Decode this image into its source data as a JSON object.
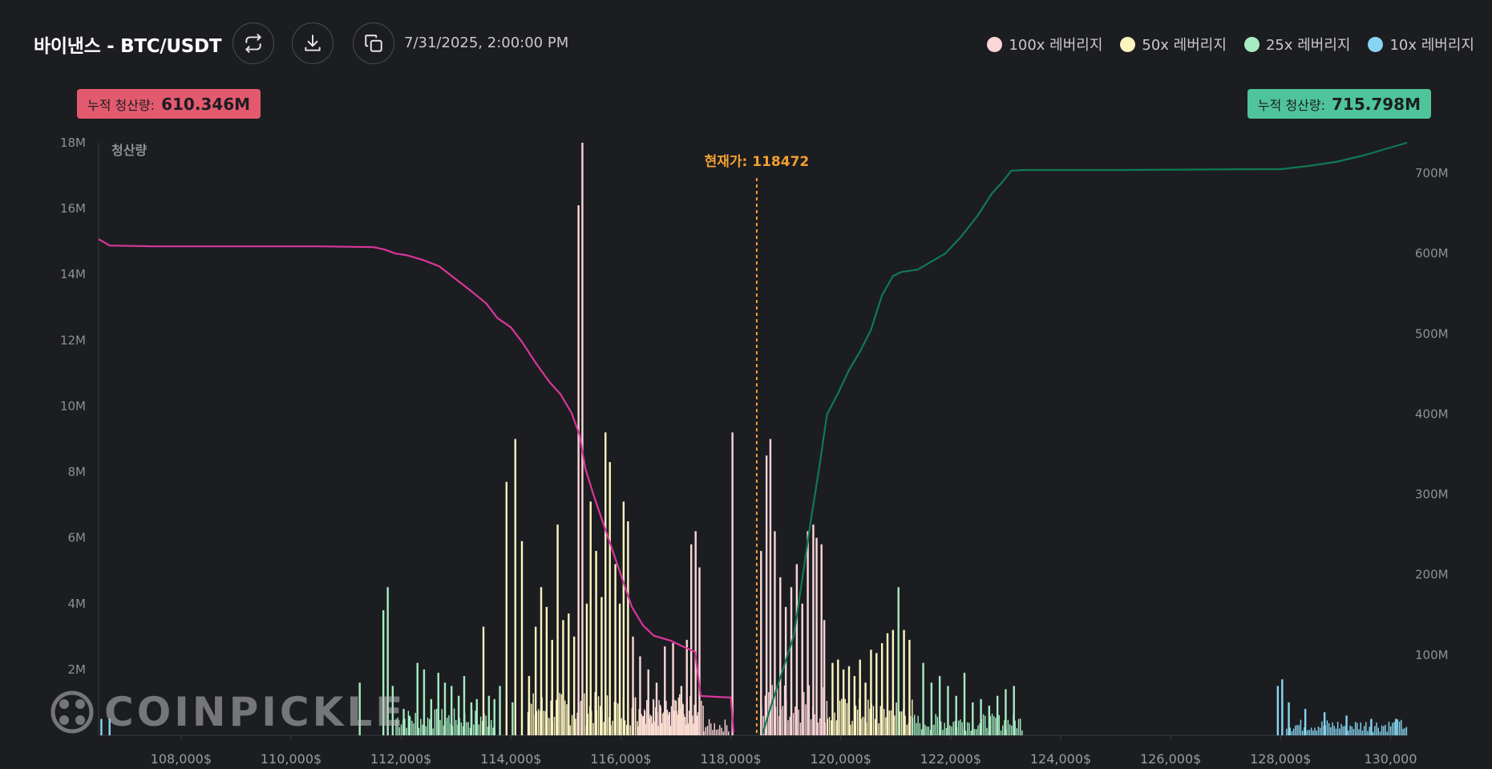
{
  "header": {
    "title": "바이낸스 - BTC/USDT",
    "timestamp": "7/31/2025, 2:00:00 PM",
    "buttons": [
      {
        "icon": "swap-icon"
      },
      {
        "icon": "download-icon"
      },
      {
        "icon": "copy-icon"
      }
    ]
  },
  "legend": [
    {
      "label": "100x 레버리지",
      "color": "#fbd6d8"
    },
    {
      "label": "50x 레버리지",
      "color": "#fdf5c0"
    },
    {
      "label": "25x 레버리지",
      "color": "#a6ecc1"
    },
    {
      "label": "10x 레버리지",
      "color": "#86d6f2"
    }
  ],
  "badges": {
    "left": {
      "label": "누적 청산량:",
      "value": "610.346M"
    },
    "right": {
      "label": "누적 청산량:",
      "value": "715.798M"
    }
  },
  "watermark": "COINPICKLE",
  "chart_data": {
    "type": "bar",
    "ylabel": "청산량",
    "current_price_label": "현재가: 118472",
    "current_price": 118472,
    "xlim": [
      106500,
      130300
    ],
    "ylim": [
      0,
      18000000
    ],
    "y2lim": [
      0,
      738000000
    ],
    "x_ticks": [
      108000,
      110000,
      112000,
      114000,
      116000,
      118000,
      120000,
      122000,
      124000,
      126000,
      128000,
      130000
    ],
    "x_tick_labels": [
      "108,000$",
      "110,000$",
      "112,000$",
      "114,000$",
      "116,000$",
      "118,000$",
      "120,000$",
      "122,000$",
      "124,000$",
      "126,000$",
      "128,000$",
      "130,000"
    ],
    "y_ticks": [
      2000000,
      4000000,
      6000000,
      8000000,
      10000000,
      12000000,
      14000000,
      16000000,
      18000000
    ],
    "y_tick_labels": [
      "2M",
      "4M",
      "6M",
      "8M",
      "10M",
      "12M",
      "14M",
      "16M",
      "18M"
    ],
    "y2_ticks": [
      100000000,
      200000000,
      300000000,
      400000000,
      500000000,
      600000000,
      700000000
    ],
    "y2_tick_labels": [
      "100M",
      "200M",
      "300M",
      "400M",
      "500M",
      "600M",
      "700M"
    ],
    "bars": [
      {
        "x": 106550,
        "v": 0.5,
        "lev": "10x"
      },
      {
        "x": 106700,
        "v": 0.5,
        "lev": "10x"
      },
      {
        "x": 111250,
        "v": 1.6,
        "lev": "25x"
      },
      {
        "x": 111680,
        "v": 3.8,
        "lev": "25x"
      },
      {
        "x": 111760,
        "v": 4.5,
        "lev": "25x"
      },
      {
        "x": 111850,
        "v": 1.5,
        "lev": "25x"
      },
      {
        "x": 112050,
        "v": 0.8,
        "lev": "25x"
      },
      {
        "x": 112150,
        "v": 0.6,
        "lev": "25x"
      },
      {
        "x": 112300,
        "v": 2.2,
        "lev": "25x"
      },
      {
        "x": 112420,
        "v": 2.0,
        "lev": "25x"
      },
      {
        "x": 112550,
        "v": 1.1,
        "lev": "25x"
      },
      {
        "x": 112680,
        "v": 1.9,
        "lev": "25x"
      },
      {
        "x": 112800,
        "v": 1.6,
        "lev": "25x"
      },
      {
        "x": 112920,
        "v": 1.5,
        "lev": "25x"
      },
      {
        "x": 113050,
        "v": 1.2,
        "lev": "25x"
      },
      {
        "x": 113150,
        "v": 1.8,
        "lev": "25x"
      },
      {
        "x": 113280,
        "v": 1.0,
        "lev": "25x"
      },
      {
        "x": 113380,
        "v": 1.1,
        "lev": "25x"
      },
      {
        "x": 113500,
        "v": 3.3,
        "lev": "50x"
      },
      {
        "x": 113600,
        "v": 1.2,
        "lev": "25x"
      },
      {
        "x": 113700,
        "v": 1.1,
        "lev": "25x"
      },
      {
        "x": 113800,
        "v": 1.5,
        "lev": "25x"
      },
      {
        "x": 113920,
        "v": 7.7,
        "lev": "50x"
      },
      {
        "x": 114030,
        "v": 1.0,
        "lev": "25x"
      },
      {
        "x": 114080,
        "v": 9.0,
        "lev": "50x"
      },
      {
        "x": 114200,
        "v": 5.9,
        "lev": "50x"
      },
      {
        "x": 114330,
        "v": 1.8,
        "lev": "50x"
      },
      {
        "x": 114450,
        "v": 3.3,
        "lev": "50x"
      },
      {
        "x": 114550,
        "v": 4.5,
        "lev": "50x"
      },
      {
        "x": 114650,
        "v": 3.9,
        "lev": "50x"
      },
      {
        "x": 114750,
        "v": 2.9,
        "lev": "50x"
      },
      {
        "x": 114850,
        "v": 6.4,
        "lev": "50x"
      },
      {
        "x": 114950,
        "v": 3.5,
        "lev": "50x"
      },
      {
        "x": 115050,
        "v": 3.7,
        "lev": "50x"
      },
      {
        "x": 115150,
        "v": 3.0,
        "lev": "50x"
      },
      {
        "x": 115230,
        "v": 16.1,
        "lev": "100x"
      },
      {
        "x": 115300,
        "v": 18.0,
        "lev": "100x"
      },
      {
        "x": 115380,
        "v": 4.0,
        "lev": "50x"
      },
      {
        "x": 115450,
        "v": 7.1,
        "lev": "50x"
      },
      {
        "x": 115550,
        "v": 5.6,
        "lev": "50x"
      },
      {
        "x": 115650,
        "v": 4.2,
        "lev": "50x"
      },
      {
        "x": 115720,
        "v": 9.2,
        "lev": "50x"
      },
      {
        "x": 115800,
        "v": 8.3,
        "lev": "50x"
      },
      {
        "x": 115900,
        "v": 5.2,
        "lev": "50x"
      },
      {
        "x": 115980,
        "v": 4.0,
        "lev": "50x"
      },
      {
        "x": 116050,
        "v": 7.1,
        "lev": "50x"
      },
      {
        "x": 116130,
        "v": 6.5,
        "lev": "50x"
      },
      {
        "x": 116220,
        "v": 3.0,
        "lev": "100x"
      },
      {
        "x": 116350,
        "v": 2.4,
        "lev": "100x"
      },
      {
        "x": 116500,
        "v": 2.0,
        "lev": "100x"
      },
      {
        "x": 116650,
        "v": 1.6,
        "lev": "100x"
      },
      {
        "x": 116800,
        "v": 2.7,
        "lev": "100x"
      },
      {
        "x": 116950,
        "v": 2.8,
        "lev": "100x"
      },
      {
        "x": 117100,
        "v": 1.5,
        "lev": "100x"
      },
      {
        "x": 117200,
        "v": 2.9,
        "lev": "100x"
      },
      {
        "x": 117280,
        "v": 5.8,
        "lev": "100x"
      },
      {
        "x": 117360,
        "v": 6.2,
        "lev": "100x"
      },
      {
        "x": 117430,
        "v": 5.1,
        "lev": "100x"
      },
      {
        "x": 118030,
        "v": 9.2,
        "lev": "100x"
      },
      {
        "x": 118550,
        "v": 5.6,
        "lev": "100x"
      },
      {
        "x": 118650,
        "v": 8.5,
        "lev": "100x"
      },
      {
        "x": 118720,
        "v": 9.0,
        "lev": "100x"
      },
      {
        "x": 118800,
        "v": 6.2,
        "lev": "100x"
      },
      {
        "x": 118900,
        "v": 4.8,
        "lev": "100x"
      },
      {
        "x": 119000,
        "v": 3.9,
        "lev": "100x"
      },
      {
        "x": 119100,
        "v": 4.5,
        "lev": "100x"
      },
      {
        "x": 119200,
        "v": 5.2,
        "lev": "100x"
      },
      {
        "x": 119300,
        "v": 4.0,
        "lev": "100x"
      },
      {
        "x": 119400,
        "v": 6.2,
        "lev": "100x"
      },
      {
        "x": 119500,
        "v": 6.4,
        "lev": "100x"
      },
      {
        "x": 119560,
        "v": 6.0,
        "lev": "100x"
      },
      {
        "x": 119650,
        "v": 5.8,
        "lev": "100x"
      },
      {
        "x": 119700,
        "v": 3.5,
        "lev": "100x"
      },
      {
        "x": 119850,
        "v": 2.2,
        "lev": "50x"
      },
      {
        "x": 119950,
        "v": 2.3,
        "lev": "50x"
      },
      {
        "x": 120050,
        "v": 2.0,
        "lev": "50x"
      },
      {
        "x": 120150,
        "v": 2.1,
        "lev": "50x"
      },
      {
        "x": 120250,
        "v": 1.8,
        "lev": "50x"
      },
      {
        "x": 120350,
        "v": 2.3,
        "lev": "50x"
      },
      {
        "x": 120450,
        "v": 1.6,
        "lev": "50x"
      },
      {
        "x": 120550,
        "v": 2.6,
        "lev": "50x"
      },
      {
        "x": 120650,
        "v": 2.5,
        "lev": "50x"
      },
      {
        "x": 120750,
        "v": 2.8,
        "lev": "50x"
      },
      {
        "x": 120850,
        "v": 3.1,
        "lev": "50x"
      },
      {
        "x": 120950,
        "v": 3.2,
        "lev": "50x"
      },
      {
        "x": 121050,
        "v": 4.5,
        "lev": "25x"
      },
      {
        "x": 121150,
        "v": 3.2,
        "lev": "50x"
      },
      {
        "x": 121250,
        "v": 2.9,
        "lev": "50x"
      },
      {
        "x": 121500,
        "v": 2.2,
        "lev": "25x"
      },
      {
        "x": 121650,
        "v": 1.6,
        "lev": "25x"
      },
      {
        "x": 121800,
        "v": 1.8,
        "lev": "25x"
      },
      {
        "x": 121950,
        "v": 1.5,
        "lev": "25x"
      },
      {
        "x": 122100,
        "v": 1.2,
        "lev": "25x"
      },
      {
        "x": 122250,
        "v": 1.9,
        "lev": "25x"
      },
      {
        "x": 122400,
        "v": 1.0,
        "lev": "25x"
      },
      {
        "x": 122550,
        "v": 1.1,
        "lev": "25x"
      },
      {
        "x": 122700,
        "v": 0.9,
        "lev": "25x"
      },
      {
        "x": 122850,
        "v": 1.2,
        "lev": "25x"
      },
      {
        "x": 123000,
        "v": 1.4,
        "lev": "25x"
      },
      {
        "x": 123150,
        "v": 1.5,
        "lev": "25x"
      },
      {
        "x": 127950,
        "v": 1.5,
        "lev": "10x"
      },
      {
        "x": 128030,
        "v": 1.7,
        "lev": "10x"
      },
      {
        "x": 128150,
        "v": 1.0,
        "lev": "10x"
      },
      {
        "x": 128450,
        "v": 0.8,
        "lev": "10x"
      },
      {
        "x": 128800,
        "v": 0.7,
        "lev": "10x"
      },
      {
        "x": 129200,
        "v": 0.6,
        "lev": "10x"
      },
      {
        "x": 129650,
        "v": 0.5,
        "lev": "10x"
      },
      {
        "x": 130100,
        "v": 0.5,
        "lev": "10x"
      }
    ],
    "dense_fill": [
      {
        "from": 111900,
        "to": 113700,
        "avg": 0.5,
        "lev": "25x"
      },
      {
        "from": 114300,
        "to": 117400,
        "avg": 0.8,
        "lev": "50x"
      },
      {
        "from": 116300,
        "to": 117500,
        "avg": 0.7,
        "lev": "100x"
      },
      {
        "from": 117500,
        "to": 117950,
        "avg": 0.3,
        "lev": "100x"
      },
      {
        "from": 118550,
        "to": 119750,
        "avg": 1.0,
        "lev": "100x"
      },
      {
        "from": 119750,
        "to": 121300,
        "avg": 0.7,
        "lev": "50x"
      },
      {
        "from": 121300,
        "to": 123300,
        "avg": 0.4,
        "lev": "25x"
      },
      {
        "from": 128100,
        "to": 130300,
        "avg": 0.3,
        "lev": "10x"
      }
    ],
    "cumulative_short": {
      "name": "short-liquidation-cumulative",
      "color": "#d8369a",
      "points": [
        [
          106500,
          618
        ],
        [
          106700,
          610
        ],
        [
          107500,
          609
        ],
        [
          109000,
          609
        ],
        [
          110500,
          609
        ],
        [
          111500,
          608
        ],
        [
          111700,
          605
        ],
        [
          111900,
          600
        ],
        [
          112100,
          598
        ],
        [
          112400,
          592
        ],
        [
          112700,
          584
        ],
        [
          113000,
          568
        ],
        [
          113300,
          552
        ],
        [
          113550,
          538
        ],
        [
          113750,
          520
        ],
        [
          114000,
          508
        ],
        [
          114200,
          490
        ],
        [
          114450,
          464
        ],
        [
          114700,
          440
        ],
        [
          114900,
          425
        ],
        [
          115100,
          402
        ],
        [
          115250,
          374
        ],
        [
          115350,
          333
        ],
        [
          115500,
          300
        ],
        [
          115650,
          270
        ],
        [
          115800,
          240
        ],
        [
          116000,
          200
        ],
        [
          116200,
          160
        ],
        [
          116400,
          137
        ],
        [
          116600,
          124
        ],
        [
          116900,
          118
        ],
        [
          117150,
          110
        ],
        [
          117350,
          104
        ],
        [
          117450,
          49
        ],
        [
          117700,
          48
        ],
        [
          118000,
          47
        ],
        [
          118050,
          3
        ]
      ]
    },
    "cumulative_long": {
      "name": "long-liquidation-cumulative",
      "color": "#0f7a52",
      "points": [
        [
          118580,
          2
        ],
        [
          118700,
          30
        ],
        [
          118900,
          72
        ],
        [
          119150,
          125
        ],
        [
          119300,
          195
        ],
        [
          119450,
          265
        ],
        [
          119600,
          330
        ],
        [
          119750,
          400
        ],
        [
          119950,
          426
        ],
        [
          120150,
          455
        ],
        [
          120350,
          478
        ],
        [
          120550,
          505
        ],
        [
          120750,
          548
        ],
        [
          120950,
          572
        ],
        [
          121100,
          577
        ],
        [
          121400,
          580
        ],
        [
          121600,
          588
        ],
        [
          121900,
          600
        ],
        [
          122200,
          622
        ],
        [
          122500,
          648
        ],
        [
          122750,
          675
        ],
        [
          122950,
          690
        ],
        [
          123100,
          703
        ],
        [
          123300,
          704
        ],
        [
          125000,
          704
        ],
        [
          127500,
          705
        ],
        [
          128000,
          705
        ],
        [
          128500,
          709
        ],
        [
          129000,
          714
        ],
        [
          129500,
          722
        ],
        [
          129900,
          730
        ],
        [
          130100,
          734
        ],
        [
          130300,
          738
        ]
      ]
    }
  }
}
